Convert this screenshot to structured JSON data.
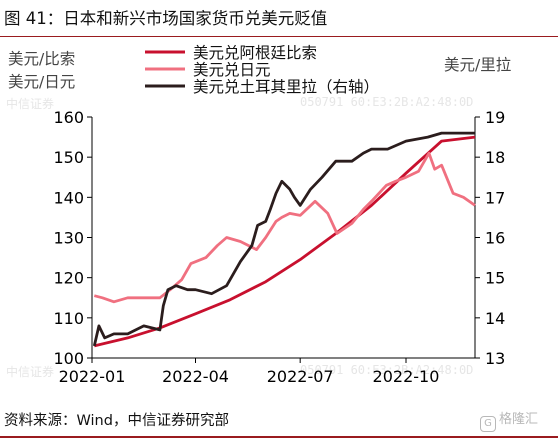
{
  "title": "图 41：日本和新兴市场国家货币兑美元贬值",
  "source": "资料来源：Wind，中信证券研究部",
  "watermark_text": "050791  60:E3:2B:A2:48:0D",
  "watermark_left_text": "中信证券",
  "logo_text": "格隆汇",
  "logo_icon": "g-logo-icon",
  "colors": {
    "argentina": "#c8102e",
    "japan": "#f07080",
    "turkey": "#2b1d1d",
    "rule": "#9a1b1f"
  },
  "chart_data": {
    "type": "line",
    "title": "",
    "ylabel_left_lines": [
      "美元/比索",
      "美元/日元"
    ],
    "ylabel_right": "美元/里拉",
    "ylim_left": [
      100,
      160
    ],
    "ylim_right": [
      13,
      19
    ],
    "yticks_left": [
      "100",
      "110",
      "120",
      "130",
      "140",
      "150",
      "160"
    ],
    "yticks_right": [
      "13",
      "14",
      "15",
      "16",
      "17",
      "18",
      "19"
    ],
    "xlim": [
      "2022-01-01",
      "2022-11-30"
    ],
    "xticks": [
      "2022-01",
      "2022-04",
      "2022-07",
      "2022-10"
    ],
    "grid": false,
    "legend_position": "top",
    "series": [
      {
        "name": "美元兑阿根廷比索",
        "axis": "left",
        "color": "#c8102e",
        "x": [
          "2022-01-03",
          "2022-02-01",
          "2022-03-01",
          "2022-04-01",
          "2022-05-01",
          "2022-06-01",
          "2022-07-01",
          "2022-08-01",
          "2022-09-01",
          "2022-10-01",
          "2022-11-01",
          "2022-11-30"
        ],
        "values": [
          103,
          105,
          107.5,
          111,
          114.5,
          119,
          124.5,
          131,
          138,
          146,
          154,
          155
        ]
      },
      {
        "name": "美元兑日元",
        "axis": "left",
        "color": "#f07080",
        "x": [
          "2022-01-03",
          "2022-01-10",
          "2022-01-20",
          "2022-02-01",
          "2022-02-15",
          "2022-03-01",
          "2022-03-10",
          "2022-03-20",
          "2022-03-28",
          "2022-04-10",
          "2022-04-20",
          "2022-04-28",
          "2022-05-10",
          "2022-05-24",
          "2022-06-01",
          "2022-06-10",
          "2022-06-15",
          "2022-06-22",
          "2022-07-01",
          "2022-07-14",
          "2022-07-25",
          "2022-08-02",
          "2022-08-15",
          "2022-08-25",
          "2022-09-01",
          "2022-09-14",
          "2022-09-22",
          "2022-10-01",
          "2022-10-12",
          "2022-10-21",
          "2022-10-26",
          "2022-11-01",
          "2022-11-11",
          "2022-11-20",
          "2022-11-30"
        ],
        "values": [
          115.5,
          115,
          114,
          115,
          115,
          115,
          117,
          119.5,
          123.5,
          125,
          128,
          130,
          129,
          127,
          130,
          134,
          135,
          136,
          135.5,
          139,
          136,
          131,
          133.5,
          137,
          139,
          143,
          144,
          145,
          146.5,
          151,
          147,
          148,
          141,
          140,
          138
        ]
      },
      {
        "name": "美元兑土耳其里拉（右轴）",
        "axis": "right",
        "color": "#2b1d1d",
        "x": [
          "2022-01-03",
          "2022-01-07",
          "2022-01-12",
          "2022-01-20",
          "2022-02-01",
          "2022-02-15",
          "2022-03-01",
          "2022-03-04",
          "2022-03-08",
          "2022-03-15",
          "2022-03-25",
          "2022-04-01",
          "2022-04-15",
          "2022-04-28",
          "2022-05-10",
          "2022-05-20",
          "2022-05-25",
          "2022-06-01",
          "2022-06-05",
          "2022-06-10",
          "2022-06-15",
          "2022-06-22",
          "2022-06-26",
          "2022-07-01",
          "2022-07-10",
          "2022-07-20",
          "2022-08-01",
          "2022-08-05",
          "2022-08-15",
          "2022-08-25",
          "2022-09-01",
          "2022-09-15",
          "2022-10-01",
          "2022-10-20",
          "2022-11-01",
          "2022-11-15",
          "2022-11-30"
        ],
        "values": [
          13.3,
          13.8,
          13.5,
          13.6,
          13.6,
          13.8,
          13.7,
          14.3,
          14.7,
          14.8,
          14.7,
          14.7,
          14.6,
          14.8,
          15.4,
          15.8,
          16.3,
          16.4,
          16.7,
          17.1,
          17.4,
          17.2,
          17.0,
          16.8,
          17.2,
          17.5,
          17.9,
          17.9,
          17.9,
          18.1,
          18.2,
          18.2,
          18.4,
          18.5,
          18.6,
          18.6,
          18.6
        ]
      }
    ]
  }
}
